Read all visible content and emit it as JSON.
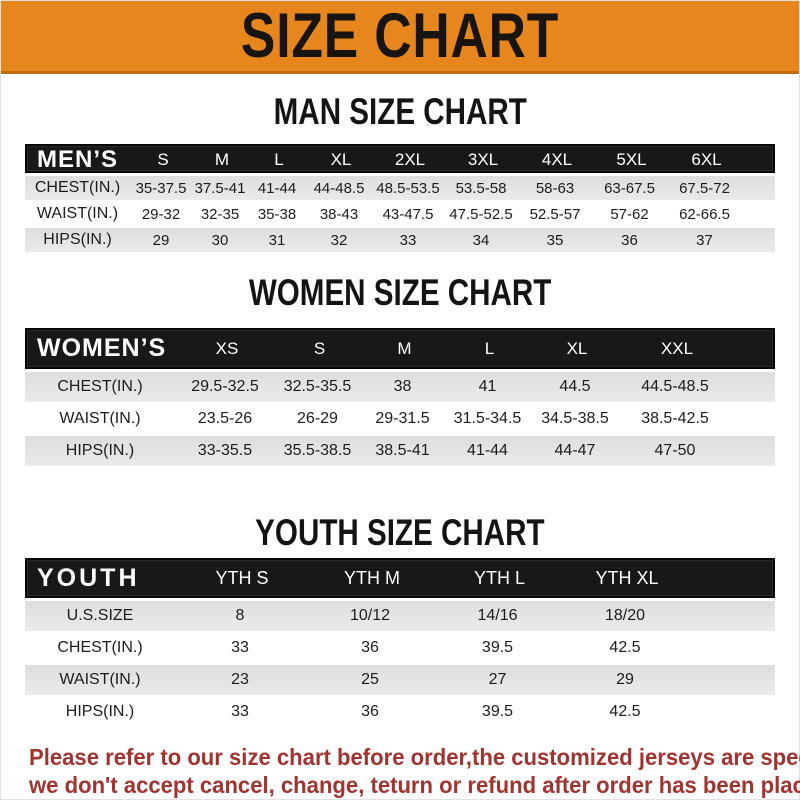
{
  "banner": {
    "title": "SIZE CHART",
    "bg_color": "#e8861e",
    "text_color": "#181411"
  },
  "sections": [
    {
      "heading": "MAN SIZE CHART",
      "header_label": "MEN’S",
      "columns": [
        "S",
        "M",
        "L",
        "XL",
        "2XL",
        "3XL",
        "4XL",
        "5XL",
        "6XL"
      ],
      "rows": [
        {
          "label": "CHEST(IN.)",
          "values": [
            "35-37.5",
            "37.5-41",
            "41-44",
            "44-48.5",
            "48.5-53.5",
            "53.5-58",
            "58-63",
            "63-67.5",
            "67.5-72"
          ]
        },
        {
          "label": "WAIST(IN.)",
          "values": [
            "29-32",
            "32-35",
            "35-38",
            "38-43",
            "43-47.5",
            "47.5-52.5",
            "52.5-57",
            "57-62",
            "62-66.5"
          ]
        },
        {
          "label": "HIPS(IN.)",
          "values": [
            "29",
            "30",
            "31",
            "32",
            "33",
            "34",
            "35",
            "36",
            "37"
          ]
        }
      ]
    },
    {
      "heading": "WOMEN SIZE CHART",
      "header_label": "WOMEN’S",
      "columns": [
        "XS",
        "S",
        "M",
        "L",
        "XL",
        "XXL"
      ],
      "rows": [
        {
          "label": "CHEST(IN.)",
          "values": [
            "29.5-32.5",
            "32.5-35.5",
            "38",
            "41",
            "44.5",
            "44.5-48.5"
          ]
        },
        {
          "label": "WAIST(IN.)",
          "values": [
            "23.5-26",
            "26-29",
            "29-31.5",
            "31.5-34.5",
            "34.5-38.5",
            "38.5-42.5"
          ]
        },
        {
          "label": "HIPS(IN.)",
          "values": [
            "33-35.5",
            "35.5-38.5",
            "38.5-41",
            "41-44",
            "44-47",
            "47-50"
          ]
        }
      ]
    },
    {
      "heading": "YOUTH SIZE CHART",
      "header_label": "YOUTH",
      "columns": [
        "YTH S",
        "YTH M",
        "YTH L",
        "YTH XL"
      ],
      "rows": [
        {
          "label": "U.S.SIZE",
          "values": [
            "8",
            "10/12",
            "14/16",
            "18/20"
          ]
        },
        {
          "label": "CHEST(IN.)",
          "values": [
            "33",
            "36",
            "39.5",
            "42.5"
          ]
        },
        {
          "label": "WAIST(IN.)",
          "values": [
            "23",
            "25",
            "27",
            "29"
          ]
        },
        {
          "label": "HIPS(IN.)",
          "values": [
            "33",
            "36",
            "39.5",
            "42.5"
          ]
        }
      ]
    }
  ],
  "footer": {
    "line1": "Please refer to our size chart before order,the customized jerseys are special products,",
    "line2": "we don't accept cancel, change, teturn or refund after order has been placed!",
    "text_color": "#a23430"
  }
}
